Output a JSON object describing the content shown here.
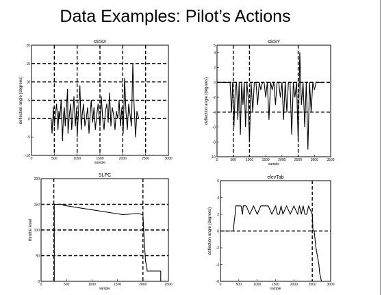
{
  "slide": {
    "title": "Data Examples:  Pilot’s Actions"
  },
  "chart_data": [
    {
      "type": "line",
      "title": "stickX",
      "xlabel": "sample",
      "ylabel": "deflection angle (degrees)",
      "xlim": [
        0,
        3000
      ],
      "ylim": [
        -10,
        20
      ],
      "xticks": [
        0,
        500,
        1000,
        1500,
        2000,
        2500,
        3000
      ],
      "yticks": [
        -10,
        -5,
        0,
        5,
        10,
        15,
        20
      ],
      "grid_x": [
        500,
        1000,
        1500,
        2000,
        2500
      ],
      "grid_y": [
        0,
        5,
        10,
        15
      ],
      "series": [
        {
          "x": [
            430,
            450,
            480,
            500,
            520,
            550,
            580,
            600,
            620,
            650,
            680,
            700,
            720,
            740,
            760,
            790,
            800,
            830,
            860,
            880,
            900,
            930,
            960,
            990,
            1000,
            1030,
            1060,
            1090,
            1110,
            1140,
            1170,
            1200,
            1230,
            1260,
            1290,
            1310,
            1340,
            1370,
            1400,
            1430,
            1460,
            1500,
            1530,
            1560,
            1590,
            1620,
            1650,
            1680,
            1710,
            1740,
            1770,
            1800,
            1830,
            1860,
            1890,
            1920,
            1950,
            1980,
            2010,
            2040,
            2070,
            2100,
            2130,
            2160,
            2190,
            2220,
            2250,
            2280,
            2310,
            2350
          ],
          "y": [
            0,
            -4,
            3,
            -2,
            1,
            4,
            -3,
            2,
            0,
            5,
            -6,
            1,
            3,
            -2,
            2,
            8,
            -4,
            1,
            4,
            -3,
            0,
            6,
            -2,
            3,
            -5,
            2,
            9,
            -3,
            1,
            4,
            -2,
            0,
            3,
            -4,
            2,
            5,
            -1,
            3,
            -3,
            1,
            4,
            -2,
            6,
            0,
            -3,
            2,
            4,
            -1,
            7,
            -2,
            3,
            1,
            -3,
            2,
            0,
            5,
            -2,
            3,
            -4,
            11,
            2,
            -3,
            4,
            1,
            -2,
            15,
            3,
            -5,
            2,
            0
          ]
        }
      ]
    },
    {
      "type": "line",
      "title": "stickY",
      "xlabel": "sample",
      "ylabel": "deflection angle (degrees)",
      "xlim": [
        0,
        3500
      ],
      "ylim": [
        -10,
        5
      ],
      "xticks": [
        0,
        500,
        1000,
        1500,
        2000,
        2500,
        3000,
        3500
      ],
      "yticks": [
        -10,
        -8,
        -6,
        -4,
        -2,
        0,
        2,
        4,
        5
      ],
      "grid_x": [
        500,
        1000,
        2500
      ],
      "grid_y": [
        -4,
        0
      ],
      "series": [
        {
          "x": [
            0,
            400,
            450,
            480,
            520,
            560,
            600,
            640,
            680,
            720,
            760,
            800,
            840,
            880,
            920,
            960,
            1000,
            1050,
            1100,
            1150,
            1200,
            1250,
            1300,
            1350,
            1400,
            1450,
            1500,
            1550,
            1600,
            1650,
            1700,
            1750,
            1800,
            1850,
            1900,
            1950,
            2000,
            2050,
            2100,
            2150,
            2200,
            2250,
            2300,
            2350,
            2400,
            2450,
            2500,
            2550,
            2600,
            2650,
            2700,
            2750,
            2800,
            2850,
            2900,
            2950,
            3000,
            3050,
            3100,
            3200
          ],
          "y": [
            0,
            0,
            -4,
            0,
            -6,
            -1,
            0,
            -5,
            0,
            -7,
            0,
            -3,
            0,
            -6,
            0,
            -2,
            -8,
            0,
            -4,
            0,
            0,
            -3,
            0,
            -1,
            0,
            0,
            -2,
            0,
            -5,
            0,
            -1,
            0,
            -3,
            0,
            0,
            -2,
            0,
            -5,
            0,
            -4,
            0,
            0,
            -7,
            0,
            -2,
            0,
            -8,
            4,
            -3,
            0,
            -6,
            0,
            -9,
            0,
            -4,
            0,
            -1,
            0,
            0,
            0
          ]
        }
      ]
    },
    {
      "type": "line",
      "title": "SLPC",
      "xlabel": "sample",
      "ylabel": "throttle level",
      "xlim": [
        0,
        2500
      ],
      "ylim": [
        0,
        200
      ],
      "xticks": [
        0,
        500,
        1000,
        1500,
        2000,
        2500
      ],
      "yticks": [
        0,
        50,
        100,
        150,
        200
      ],
      "grid_x": [
        250,
        2000
      ],
      "grid_y": [
        50,
        100,
        150
      ],
      "series": [
        {
          "x": [
            250,
            260,
            260,
            420,
            440,
            1600,
            1900,
            2000,
            2020,
            2050,
            2080,
            2080,
            2350,
            2350
          ],
          "y": [
            0,
            0,
            150,
            150,
            148,
            130,
            132,
            130,
            90,
            40,
            25,
            20,
            20,
            0
          ]
        }
      ]
    },
    {
      "type": "line",
      "title": "elevTab",
      "xlabel": "sample",
      "ylabel": "deflection angle (degrees)",
      "xlim": [
        0,
        3000
      ],
      "ylim": [
        -6,
        6
      ],
      "xticks": [
        0,
        500,
        1000,
        1500,
        2000,
        2500,
        3000
      ],
      "yticks": [
        -6,
        -4,
        -2,
        0,
        2,
        4,
        6
      ],
      "grid_x": [
        2500
      ],
      "grid_y": [
        0
      ],
      "series": [
        {
          "x": [
            0,
            350,
            370,
            400,
            420,
            560,
            600,
            620,
            700,
            800,
            900,
            1000,
            1100,
            1300,
            1400,
            1500,
            1550,
            1600,
            1650,
            1700,
            1800,
            1900,
            2000,
            2100,
            2150,
            2200,
            2250,
            2300,
            2350,
            2400,
            2500,
            2520,
            2550,
            2600,
            2640,
            2680,
            2700,
            2750,
            2800,
            2900
          ],
          "y": [
            0,
            0,
            1,
            2,
            3,
            3,
            2,
            3,
            3,
            2,
            3,
            2,
            3,
            3,
            2,
            3,
            2,
            2,
            3,
            2,
            3,
            2,
            3,
            2,
            3,
            2,
            3,
            2,
            2,
            3,
            2,
            0,
            0,
            -2,
            -3,
            -4,
            -5,
            -6,
            -6,
            -6
          ]
        }
      ]
    }
  ]
}
